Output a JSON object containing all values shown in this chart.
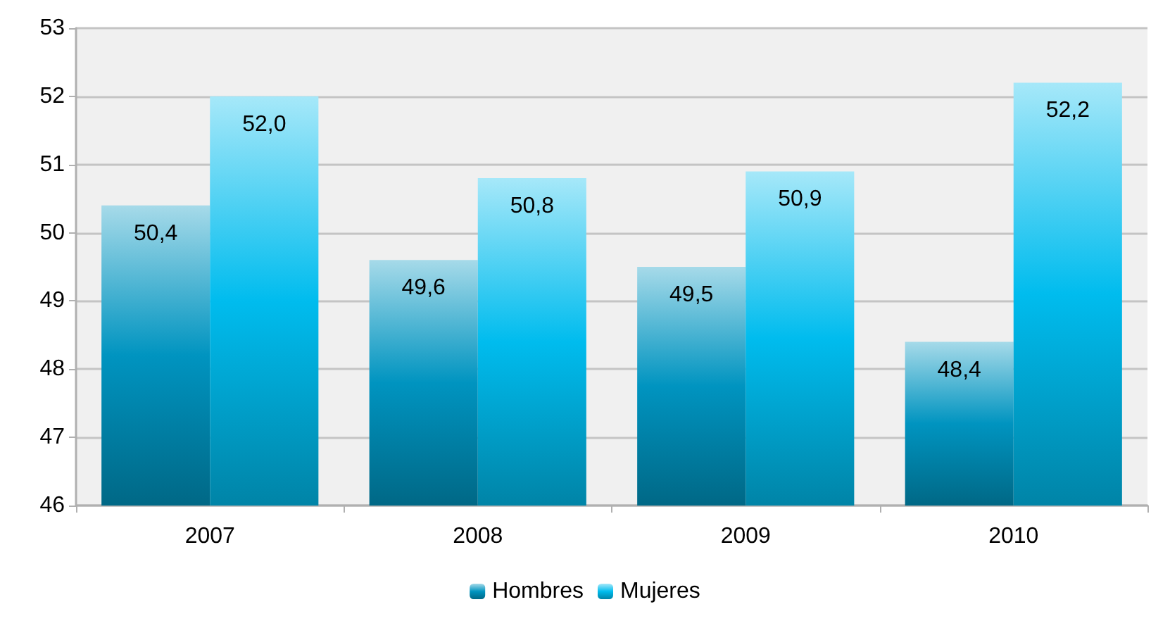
{
  "chart_data": {
    "type": "bar",
    "categories": [
      "2007",
      "2008",
      "2009",
      "2010"
    ],
    "series": [
      {
        "name": "Hombres",
        "color": "#0094c0",
        "values": [
          50.4,
          49.6,
          49.5,
          48.4
        ],
        "value_labels": [
          "50,4",
          "49,6",
          "49,5",
          "48,4"
        ]
      },
      {
        "name": "Mujeres",
        "color": "#00bcee",
        "values": [
          52.0,
          50.8,
          50.9,
          52.2
        ],
        "value_labels": [
          "52,0",
          "50,8",
          "50,9",
          "52,2"
        ]
      }
    ],
    "ylim": [
      46,
      53
    ],
    "yticks": [
      46,
      47,
      48,
      49,
      50,
      51,
      52,
      53
    ],
    "grid": "y",
    "legend": "bottom"
  }
}
